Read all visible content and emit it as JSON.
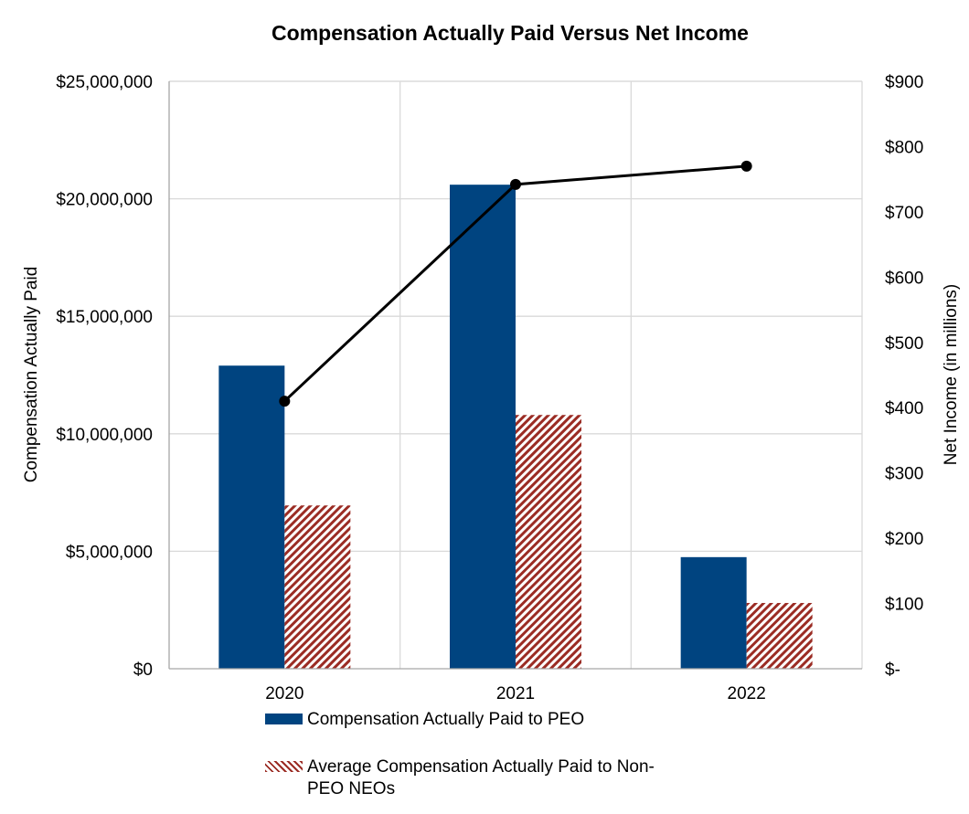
{
  "chart_data": {
    "type": "bar",
    "title": "Compensation Actually Paid Versus Net Income",
    "categories": [
      "2020",
      "2021",
      "2022"
    ],
    "ylabel": "Compensation Actually Paid",
    "y2label": "Net Income (in millions)",
    "ylim": [
      0,
      25000000
    ],
    "y2lim": [
      0,
      900
    ],
    "yticks": [
      {
        "value": 0,
        "label": "$0"
      },
      {
        "value": 5000000,
        "label": "$5,000,000"
      },
      {
        "value": 10000000,
        "label": "$10,000,000"
      },
      {
        "value": 15000000,
        "label": "$15,000,000"
      },
      {
        "value": 20000000,
        "label": "$20,000,000"
      },
      {
        "value": 25000000,
        "label": "$25,000,000"
      }
    ],
    "y2ticks": [
      {
        "value": 0,
        "label": "$-"
      },
      {
        "value": 100,
        "label": "$100"
      },
      {
        "value": 200,
        "label": "$200"
      },
      {
        "value": 300,
        "label": "$300"
      },
      {
        "value": 400,
        "label": "$400"
      },
      {
        "value": 500,
        "label": "$500"
      },
      {
        "value": 600,
        "label": "$600"
      },
      {
        "value": 700,
        "label": "$700"
      },
      {
        "value": 800,
        "label": "$800"
      },
      {
        "value": 900,
        "label": "$900"
      }
    ],
    "grid": true,
    "series": [
      {
        "name": "Compensation Actually Paid to PEO",
        "type": "bar",
        "axis": "left",
        "color": "#004480",
        "values": [
          12900000,
          20600000,
          4750000
        ]
      },
      {
        "name": "Average Compensation Actually Paid to Non-PEO NEOs",
        "type": "bar",
        "axis": "left",
        "color": "#9b2c24",
        "pattern": "diagonal-stripes",
        "values": [
          6950000,
          10800000,
          2800000
        ]
      },
      {
        "name": "Net Income",
        "type": "line",
        "axis": "right",
        "color": "#000000",
        "values": [
          410,
          742,
          770
        ]
      }
    ],
    "legend": {
      "position": "bottom",
      "items": [
        {
          "label": "Compensation Actually Paid to PEO",
          "series": 0
        },
        {
          "label_lines": [
            "Average Compensation Actually Paid to Non-",
            "PEO NEOs"
          ],
          "series": 1
        }
      ]
    }
  }
}
